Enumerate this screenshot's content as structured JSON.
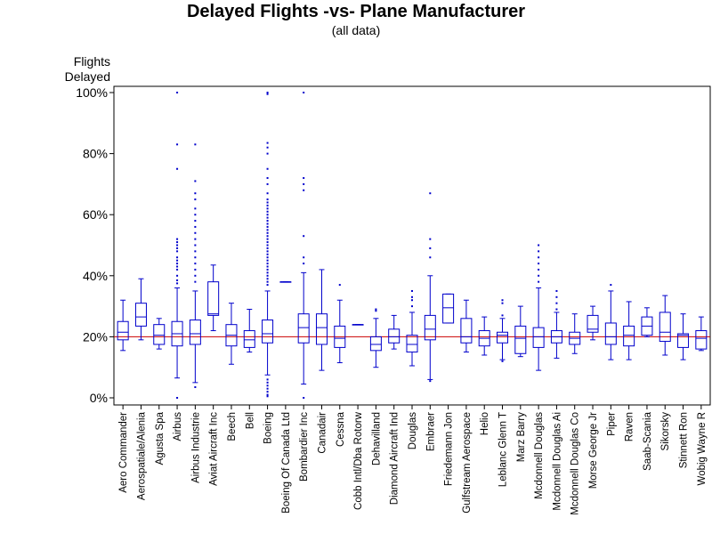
{
  "chart_data": {
    "type": "box",
    "title": "Delayed Flights -vs- Plane Manufacturer",
    "subtitle": "(all data)",
    "ylabel_lines": [
      "Flights",
      "Delayed"
    ],
    "xlabel": "",
    "ylim": [
      0,
      100
    ],
    "y_ticks": [
      {
        "value": 0,
        "label": "0%"
      },
      {
        "value": 20,
        "label": "20%"
      },
      {
        "value": 40,
        "label": "40%"
      },
      {
        "value": 60,
        "label": "60%"
      },
      {
        "value": 80,
        "label": "80%"
      },
      {
        "value": 100,
        "label": "100%"
      }
    ],
    "reference_line": {
      "value": 20,
      "color": "#cc0000"
    },
    "box_color": "#0000cc",
    "categories": [
      "Aero Commander",
      "Aerospatiale/Alenia",
      "Agusta Spa",
      "Airbus",
      "Airbus Industrie",
      "Aviat Aircraft Inc",
      "Beech",
      "Bell",
      "Boeing",
      "Boeing Of Canada Ltd",
      "Bombardier Inc",
      "Canadair",
      "Cessna",
      "Cobb Intl/Dba Rotorw",
      "Dehavilland",
      "Diamond Aircraft Ind",
      "Douglas",
      "Embraer",
      "Friedemann Jon",
      "Gulfstream Aerospace",
      "Helio",
      "Leblanc Glenn T",
      "Marz Barry",
      "Mcdonnell Douglas",
      "Mcdonnell Douglas Ai",
      "Mcdonnell Douglas Co",
      "Morse George Jr",
      "Piper",
      "Raven",
      "Saab-Scania",
      "Sikorsky",
      "Stinnett Ron",
      "Wobig Wayne R"
    ],
    "boxes": [
      {
        "min": 15.5,
        "q1": 19,
        "median": 21.5,
        "q3": 25,
        "max": 32,
        "outliers": []
      },
      {
        "min": 19,
        "q1": 23.5,
        "median": 26.5,
        "q3": 31,
        "max": 39,
        "outliers": []
      },
      {
        "min": 16,
        "q1": 17.5,
        "median": 20.5,
        "q3": 24,
        "max": 26,
        "outliers": []
      },
      {
        "min": 6.5,
        "q1": 17,
        "median": 21,
        "q3": 25,
        "max": 36,
        "outliers": [
          0,
          37.5,
          38.5,
          40,
          42,
          43,
          44,
          45,
          46,
          48,
          49,
          50,
          51,
          52,
          75,
          83,
          100
        ]
      },
      {
        "min": 5,
        "q1": 17.5,
        "median": 21,
        "q3": 25.5,
        "max": 35,
        "outliers": [
          3.5,
          38,
          40,
          42,
          44,
          46,
          48,
          50,
          52,
          54,
          56,
          58,
          60,
          62,
          65,
          67,
          71,
          83
        ]
      },
      {
        "min": 22,
        "q1": 27,
        "median": 27.5,
        "q3": 38,
        "max": 43.5,
        "outliers": []
      },
      {
        "min": 11,
        "q1": 17,
        "median": 20.5,
        "q3": 24,
        "max": 31,
        "outliers": []
      },
      {
        "min": 15,
        "q1": 16.5,
        "median": 19,
        "q3": 22,
        "max": 29,
        "outliers": []
      },
      {
        "min": 7.5,
        "q1": 18,
        "median": 21,
        "q3": 25.5,
        "max": 35,
        "outliers": [
          0.5,
          1,
          2,
          3,
          4,
          5,
          6,
          37,
          38,
          39,
          40,
          41,
          42,
          43,
          44,
          45,
          46,
          47,
          48,
          49,
          50,
          51,
          52,
          53,
          54,
          55,
          56,
          57,
          58,
          59,
          60,
          61,
          62,
          63,
          64,
          65,
          67,
          70,
          72,
          75,
          80,
          82,
          83.5,
          99.5,
          100
        ]
      },
      {
        "min": 38,
        "q1": 38,
        "median": 38,
        "q3": 38,
        "max": 38,
        "outliers": []
      },
      {
        "min": 4.5,
        "q1": 18,
        "median": 23,
        "q3": 27.5,
        "max": 41,
        "outliers": [
          0,
          44,
          46,
          53,
          68,
          70,
          72,
          100
        ]
      },
      {
        "min": 9,
        "q1": 17.5,
        "median": 23,
        "q3": 27.5,
        "max": 42,
        "outliers": []
      },
      {
        "min": 11.5,
        "q1": 16.5,
        "median": 19.5,
        "q3": 23.5,
        "max": 32,
        "outliers": [
          37
        ]
      },
      {
        "min": 24,
        "q1": 24,
        "median": 24,
        "q3": 24,
        "max": 24,
        "outliers": []
      },
      {
        "min": 10,
        "q1": 15.5,
        "median": 17.5,
        "q3": 20,
        "max": 26,
        "outliers": [
          28.5,
          29
        ]
      },
      {
        "min": 16,
        "q1": 18,
        "median": 20,
        "q3": 22.5,
        "max": 27,
        "outliers": []
      },
      {
        "min": 10.5,
        "q1": 15,
        "median": 17.5,
        "q3": 20.5,
        "max": 28,
        "outliers": [
          30,
          32,
          33,
          35
        ]
      },
      {
        "min": 6,
        "q1": 19,
        "median": 22.5,
        "q3": 27,
        "max": 40,
        "outliers": [
          5.5,
          46,
          49,
          52,
          67
        ]
      },
      {
        "min": 24.5,
        "q1": 24.5,
        "median": 29.5,
        "q3": 34,
        "max": 34,
        "outliers": []
      },
      {
        "min": 15,
        "q1": 18,
        "median": 20,
        "q3": 26,
        "max": 32,
        "outliers": []
      },
      {
        "min": 14,
        "q1": 17,
        "median": 19.5,
        "q3": 22,
        "max": 26.5,
        "outliers": []
      },
      {
        "min": 12.5,
        "q1": 18,
        "median": 20.5,
        "q3": 21.5,
        "max": 26,
        "outliers": [
          12,
          27,
          31,
          32
        ]
      },
      {
        "min": 13.5,
        "q1": 14.5,
        "median": 19.5,
        "q3": 23.5,
        "max": 30,
        "outliers": []
      },
      {
        "min": 9,
        "q1": 16.5,
        "median": 20,
        "q3": 23,
        "max": 36,
        "outliers": [
          38,
          40,
          42,
          44,
          46,
          48,
          50
        ]
      },
      {
        "min": 13,
        "q1": 18,
        "median": 20,
        "q3": 22,
        "max": 28,
        "outliers": [
          29,
          31,
          33,
          35
        ]
      },
      {
        "min": 14.5,
        "q1": 17.5,
        "median": 19.5,
        "q3": 21.5,
        "max": 27.5,
        "outliers": []
      },
      {
        "min": 19,
        "q1": 21.5,
        "median": 22.5,
        "q3": 27,
        "max": 30,
        "outliers": []
      },
      {
        "min": 12.5,
        "q1": 17.5,
        "median": 20,
        "q3": 24.5,
        "max": 35,
        "outliers": [
          37
        ]
      },
      {
        "min": 12.5,
        "q1": 17,
        "median": 20.5,
        "q3": 23.5,
        "max": 31.5,
        "outliers": []
      },
      {
        "min": 20,
        "q1": 20.5,
        "median": 23.5,
        "q3": 26.5,
        "max": 29.5,
        "outliers": []
      },
      {
        "min": 14,
        "q1": 18.5,
        "median": 21.5,
        "q3": 28,
        "max": 33.5,
        "outliers": []
      },
      {
        "min": 12.5,
        "q1": 16.5,
        "median": 20.5,
        "q3": 21,
        "max": 27.5,
        "outliers": []
      },
      {
        "min": 15.5,
        "q1": 16,
        "median": 19.5,
        "q3": 22,
        "max": 26.5,
        "outliers": []
      }
    ]
  }
}
